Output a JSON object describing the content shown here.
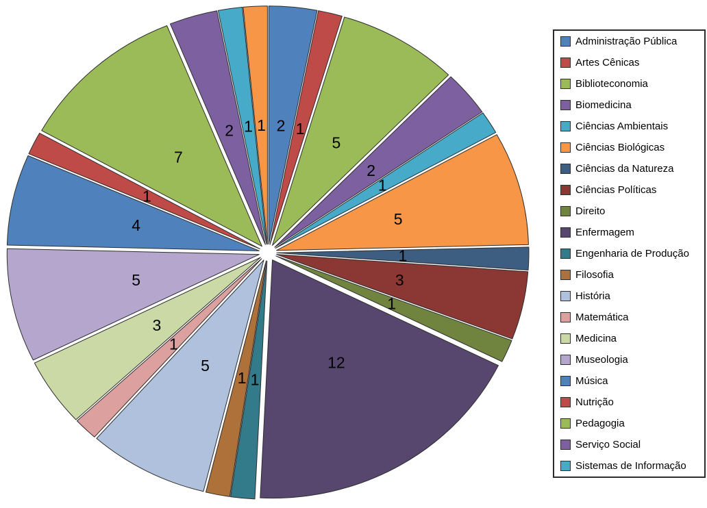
{
  "chart_data": {
    "type": "pie",
    "title": "",
    "total": 65,
    "direction": "clockwise",
    "start_angle_deg": 0,
    "exploded": true,
    "grid": false,
    "slices": [
      {
        "label": "Administração Pública",
        "value": 2,
        "color": "#4F81BD"
      },
      {
        "label": "Artes Cênicas",
        "value": 1,
        "color": "#BE4B48"
      },
      {
        "label": "Biblioteconomia",
        "value": 5,
        "color": "#9BBB59"
      },
      {
        "label": "Biomedicina",
        "value": 2,
        "color": "#7D60A0"
      },
      {
        "label": "Ciências Ambientais",
        "value": 1,
        "color": "#46AAC8"
      },
      {
        "label": "Ciências Biológicas",
        "value": 5,
        "color": "#F79646"
      },
      {
        "label": "Ciências da Natureza",
        "value": 1,
        "color": "#3E5E81"
      },
      {
        "label": "Ciências Políticas",
        "value": 3,
        "color": "#8B3835"
      },
      {
        "label": "Direito",
        "value": 1,
        "color": "#708440"
      },
      {
        "label": "Enfermagem",
        "value": 12,
        "color": "#57476F"
      },
      {
        "label": "Engenharia de Produção",
        "value": 1,
        "color": "#337B8A"
      },
      {
        "label": "Filosofia",
        "value": 1,
        "color": "#AD7139"
      },
      {
        "label": "História",
        "value": 5,
        "color": "#AFC1DD"
      },
      {
        "label": "Matemática",
        "value": 1,
        "color": "#DCA09E"
      },
      {
        "label": "Medicina",
        "value": 3,
        "color": "#CBD9A6"
      },
      {
        "label": "Museologia",
        "value": 5,
        "color": "#B5A6CE"
      },
      {
        "label": "Música",
        "value": 4,
        "color": "#4F81BD"
      },
      {
        "label": "Nutrição",
        "value": 1,
        "color": "#BE4B48"
      },
      {
        "label": "Pedagogia",
        "value": 7,
        "color": "#9BBB59"
      },
      {
        "label": "Serviço Social",
        "value": 2,
        "color": "#7D60A0"
      },
      {
        "label": "Sistemas de Informação",
        "value": 1,
        "color": "#46AAC8"
      },
      {
        "label": "",
        "value": 1,
        "color": "#F79646"
      }
    ],
    "legend": {
      "position": "right",
      "items": [
        {
          "label": "Administração Pública",
          "color": "#4F81BD"
        },
        {
          "label": "Artes Cênicas",
          "color": "#BE4B48"
        },
        {
          "label": "Biblioteconomia",
          "color": "#9BBB59"
        },
        {
          "label": "Biomedicina",
          "color": "#7D60A0"
        },
        {
          "label": "Ciências Ambientais",
          "color": "#46AAC8"
        },
        {
          "label": "Ciências Biológicas",
          "color": "#F79646"
        },
        {
          "label": "Ciências da Natureza",
          "color": "#3E5E81"
        },
        {
          "label": "Ciências Políticas",
          "color": "#8B3835"
        },
        {
          "label": "Direito",
          "color": "#708440"
        },
        {
          "label": "Enfermagem",
          "color": "#57476F"
        },
        {
          "label": "Engenharia de Produção",
          "color": "#337B8A"
        },
        {
          "label": "Filosofia",
          "color": "#AD7139"
        },
        {
          "label": "História",
          "color": "#AFC1DD"
        },
        {
          "label": "Matemática",
          "color": "#DCA09E"
        },
        {
          "label": "Medicina",
          "color": "#CBD9A6"
        },
        {
          "label": "Museologia",
          "color": "#B5A6CE"
        },
        {
          "label": "Música",
          "color": "#4F81BD"
        },
        {
          "label": "Nutrição",
          "color": "#BE4B48"
        },
        {
          "label": "Pedagogia",
          "color": "#9BBB59"
        },
        {
          "label": "Serviço Social",
          "color": "#7D60A0"
        },
        {
          "label": "Sistemas de Informação",
          "color": "#46AAC8"
        }
      ]
    },
    "note": "last slice (value 1, orange) has no visible legend entry in the screenshot"
  },
  "style": {
    "slice_outline": "#2d2d2d",
    "label_color": "#000000",
    "legend_border": "#2b2b2b",
    "background": "#ffffff"
  }
}
